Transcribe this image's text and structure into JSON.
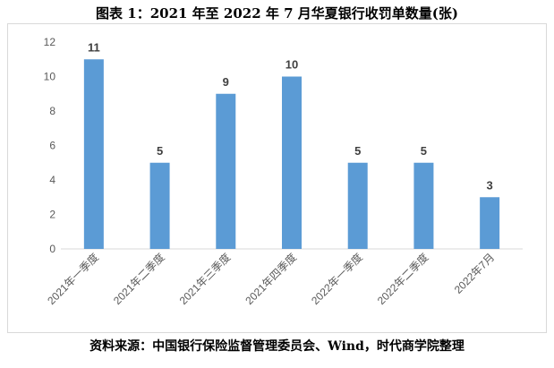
{
  "title": "图表 1：2021 年至 2022 年 7 月华夏银行收罚单数量(张)",
  "source": "资料来源：中国银行保险监督管理委员会、Wind，时代商学院整理",
  "chart_data": {
    "type": "bar",
    "categories": [
      "2021年一季度",
      "2021年二季度",
      "2021年三季度",
      "2021年四季度",
      "2022年一季度",
      "2022年二季度",
      "2022年7月"
    ],
    "values": [
      11,
      5,
      9,
      10,
      5,
      5,
      3
    ],
    "data_labels": [
      "11",
      "5",
      "9",
      "10",
      "5",
      "5",
      "3"
    ],
    "ylim": [
      0,
      12
    ],
    "yticks": [
      0,
      2,
      4,
      6,
      8,
      10,
      12
    ],
    "bar_color": "#5b9bd5",
    "grid": false,
    "legend": "none"
  }
}
